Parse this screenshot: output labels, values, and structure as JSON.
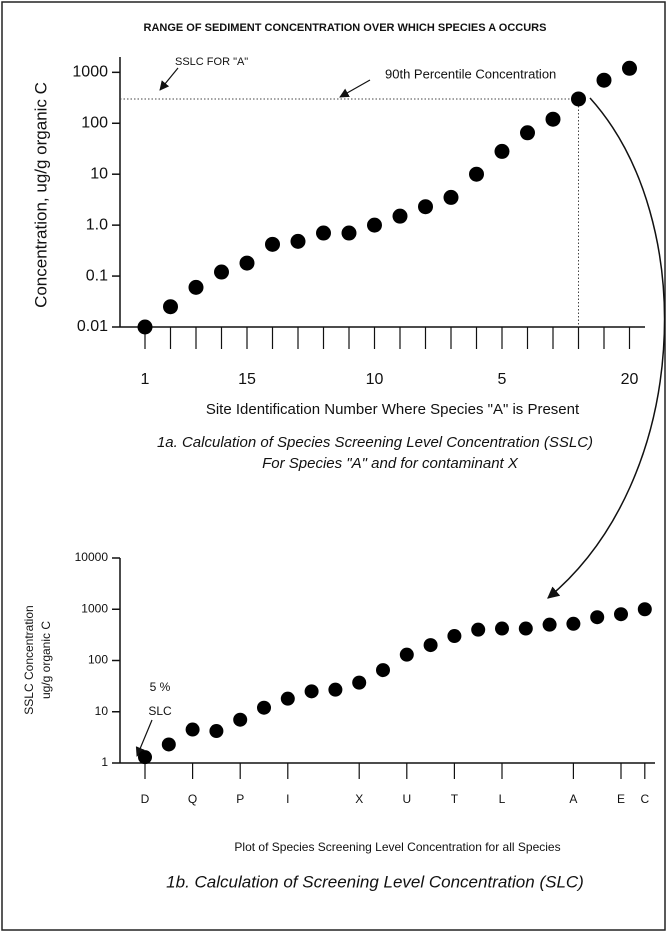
{
  "chart_data": [
    {
      "type": "scatter",
      "title": "RANGE OF SEDIMENT CONCENTRATION OVER WHICH SPECIES A OCCURS",
      "ylabel": "Concentration, ug/g organic C",
      "xlabel": "Site Identification Number Where Species \"A\" is Present",
      "caption": [
        "1a. Calculation of Species Screening Level Concentration (SSLC)",
        "For Species \"A\" and for contaminant X"
      ],
      "annotations": [
        "SSLC FOR \"A\"",
        "90th Percentile Concentration"
      ],
      "categories": [
        "1",
        null,
        null,
        null,
        "15",
        null,
        null,
        null,
        null,
        "10",
        null,
        null,
        null,
        null,
        "5",
        null,
        null,
        null,
        null,
        "20"
      ],
      "values": [
        0.01,
        0.025,
        0.06,
        0.12,
        0.18,
        0.42,
        0.48,
        0.7,
        0.7,
        1.0,
        1.5,
        2.3,
        3.5,
        10,
        28,
        65,
        120,
        300,
        700,
        1200
      ],
      "color": "#000000",
      "yscale": "log",
      "ylim": [
        0.01,
        2000
      ],
      "yticks": [
        0.01,
        0.1,
        {
          "value": 1,
          "label": "1.0"
        },
        10,
        100,
        1000
      ]
    },
    {
      "type": "scatter",
      "ylabel": [
        "SSLC Concentration",
        "ug/g organic C"
      ],
      "xlabel": "Plot of Species Screening Level Concentration for all Species",
      "caption": [
        "1b. Calculation of Screening Level Concentration (SLC)"
      ],
      "annotations": [
        "5 %",
        "SLC"
      ],
      "categories": [
        "D",
        null,
        "Q",
        null,
        "P",
        null,
        "I",
        null,
        null,
        "X",
        null,
        "U",
        null,
        "T",
        null,
        "L",
        null,
        null,
        "A",
        null,
        "E",
        "C"
      ],
      "values": [
        1.3,
        2.3,
        4.5,
        4.2,
        7,
        12,
        18,
        25,
        27,
        37,
        65,
        130,
        200,
        300,
        400,
        420,
        420,
        500,
        520,
        700,
        800,
        1000
      ],
      "color": "#000000",
      "yscale": "log",
      "ylim": [
        1,
        10000
      ],
      "yticks": [
        1,
        10,
        100,
        1000,
        10000
      ]
    }
  ]
}
